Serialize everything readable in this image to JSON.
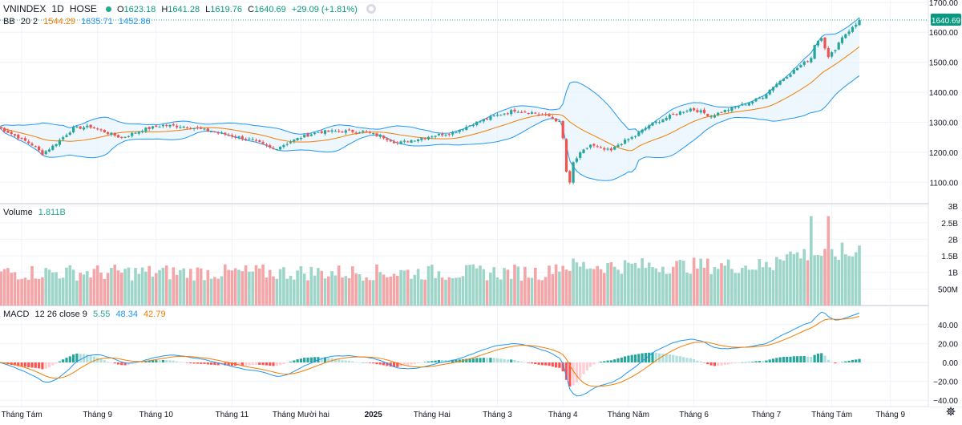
{
  "header": {
    "symbol": "VNINDEX",
    "interval": "1D",
    "exchange": "HOSE",
    "open_label": "O",
    "open": "1623.18",
    "high_label": "H",
    "high": "1641.28",
    "low_label": "L",
    "low": "1619.76",
    "close_label": "C",
    "close": "1640.69",
    "change": "+29.09 (+1.81%)"
  },
  "bb_legend": {
    "name": "BB",
    "params": "20 2",
    "basis": "1544.29",
    "upper": "1635.71",
    "lower": "1452.86"
  },
  "volume_legend": {
    "name": "Volume",
    "value": "1.811B"
  },
  "macd_legend": {
    "name": "MACD",
    "params": "12 26 close 9",
    "hist": "5.55",
    "macd": "48.34",
    "signal": "42.79"
  },
  "colors": {
    "up": "#26a69a",
    "down": "#ef5350",
    "basis": "#f57c00",
    "bands": "#2196f3",
    "band_fill": "#e3f2fd",
    "vol_up": "#9ed5c9",
    "vol_down": "#f4a5a8"
  },
  "chart_data": {
    "type": "candlestick",
    "title": "VNINDEX 1D HOSE",
    "last_price_label": "1640.69",
    "price_axis": {
      "ylim": [
        1030,
        1720
      ],
      "ticks": [
        1100,
        1200,
        1300,
        1400,
        1500,
        1600,
        1700
      ],
      "tick_labels": [
        "1100.00",
        "1200.00",
        "1300.00",
        "1400.00",
        "1500.00",
        "1600.00",
        "1700.00"
      ]
    },
    "volume_axis": {
      "ylim": [
        0,
        3.1
      ],
      "ticks": [
        0.5,
        1,
        1.5,
        2,
        2.5,
        3
      ],
      "tick_labels": [
        "500M",
        "1B",
        "1.5B",
        "2B",
        "2.5B",
        "3B"
      ]
    },
    "macd_axis": {
      "ylim": [
        -48,
        62
      ],
      "ticks": [
        -40,
        -20,
        0,
        20,
        40
      ],
      "tick_labels": [
        "−40.00",
        "−20.00",
        "0.00",
        "20.00",
        "40.00"
      ]
    },
    "time_axis": {
      "labels": [
        "Tháng Tám",
        "Tháng 9",
        "Tháng 10",
        "Tháng 11",
        "Tháng Mười hai",
        "2025",
        "Tháng Hai",
        "Tháng 3",
        "Tháng 4",
        "Tháng Năm",
        "Tháng 6",
        "Tháng 7",
        "Tháng Tám",
        "Tháng 9"
      ],
      "bar_index": [
        7,
        29,
        46,
        68,
        88,
        109,
        126,
        145,
        164,
        183,
        202,
        223,
        242,
        259
      ]
    },
    "close_keyframes": [
      [
        0,
        1285
      ],
      [
        6,
        1250
      ],
      [
        10,
        1225
      ],
      [
        13,
        1195
      ],
      [
        16,
        1220
      ],
      [
        22,
        1280
      ],
      [
        27,
        1285
      ],
      [
        33,
        1260
      ],
      [
        36,
        1248
      ],
      [
        42,
        1275
      ],
      [
        48,
        1290
      ],
      [
        55,
        1285
      ],
      [
        62,
        1270
      ],
      [
        68,
        1255
      ],
      [
        74,
        1240
      ],
      [
        80,
        1210
      ],
      [
        84,
        1230
      ],
      [
        88,
        1250
      ],
      [
        93,
        1268
      ],
      [
        100,
        1270
      ],
      [
        106,
        1270
      ],
      [
        112,
        1250
      ],
      [
        116,
        1230
      ],
      [
        120,
        1240
      ],
      [
        126,
        1255
      ],
      [
        132,
        1265
      ],
      [
        138,
        1295
      ],
      [
        144,
        1320
      ],
      [
        150,
        1340
      ],
      [
        155,
        1332
      ],
      [
        160,
        1320
      ],
      [
        163,
        1300
      ],
      [
        164,
        1245
      ],
      [
        165,
        1135
      ],
      [
        166,
        1095
      ],
      [
        167,
        1165
      ],
      [
        169,
        1195
      ],
      [
        172,
        1225
      ],
      [
        175,
        1210
      ],
      [
        178,
        1205
      ],
      [
        180,
        1225
      ],
      [
        185,
        1255
      ],
      [
        189,
        1290
      ],
      [
        193,
        1310
      ],
      [
        197,
        1330
      ],
      [
        201,
        1345
      ],
      [
        204,
        1335
      ],
      [
        207,
        1320
      ],
      [
        210,
        1335
      ],
      [
        214,
        1350
      ],
      [
        219,
        1370
      ],
      [
        222,
        1385
      ],
      [
        225,
        1420
      ],
      [
        229,
        1455
      ],
      [
        233,
        1490
      ],
      [
        236,
        1515
      ],
      [
        237,
        1560
      ],
      [
        239,
        1585
      ],
      [
        241,
        1515
      ],
      [
        243,
        1545
      ],
      [
        245,
        1585
      ],
      [
        247,
        1605
      ],
      [
        249,
        1625
      ],
      [
        250,
        1640.69
      ]
    ],
    "big_volume_bars": [
      [
        236,
        2.7
      ],
      [
        241,
        2.7
      ],
      [
        245,
        1.9
      ],
      [
        250,
        1.81
      ]
    ]
  }
}
